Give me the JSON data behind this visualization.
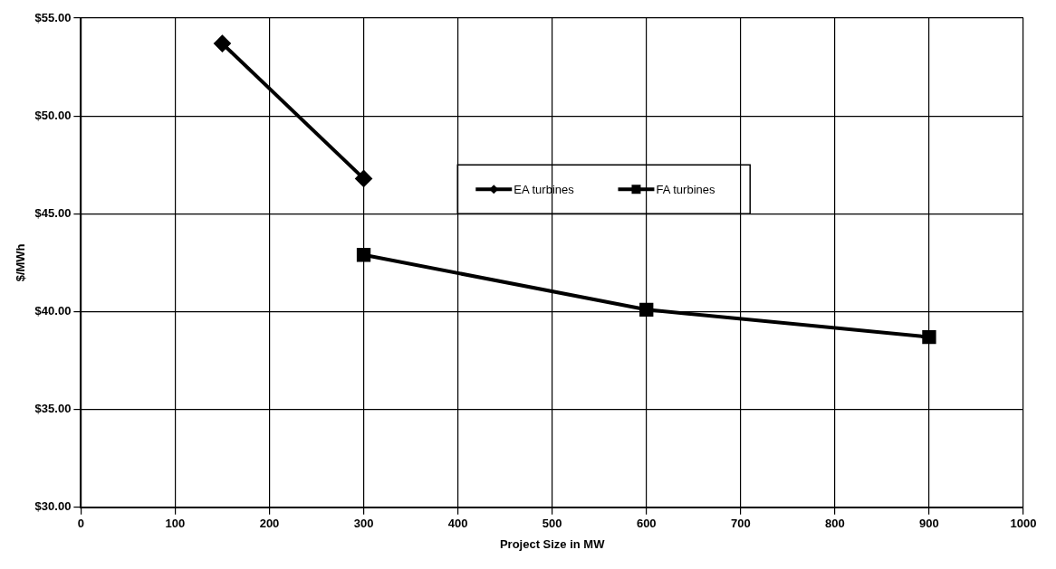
{
  "chart_data": {
    "type": "line",
    "xlabel": "Project Size in MW",
    "ylabel": "$/MWh",
    "series": [
      {
        "name": "EA turbines",
        "color": "#000000",
        "marker": "diamond",
        "x": [
          150,
          300
        ],
        "values": [
          53.7,
          46.8
        ]
      },
      {
        "name": "FA turbines",
        "color": "#000000",
        "marker": "square",
        "x": [
          300,
          600,
          900
        ],
        "values": [
          42.9,
          40.1,
          38.7
        ]
      }
    ],
    "xlim": [
      0,
      1000
    ],
    "xticks": [
      0,
      100,
      200,
      300,
      400,
      500,
      600,
      700,
      800,
      900,
      1000
    ],
    "ylim": [
      30,
      55
    ],
    "yticks": [
      {
        "value": 30,
        "label": "$30.00"
      },
      {
        "value": 35,
        "label": "$35.00"
      },
      {
        "value": 40,
        "label": "$40.00"
      },
      {
        "value": 45,
        "label": "$45.00"
      },
      {
        "value": 50,
        "label": "$50.00"
      },
      {
        "value": 55,
        "label": "$55.00"
      }
    ],
    "grid": true,
    "legend": "top right",
    "line_style": "solid"
  }
}
